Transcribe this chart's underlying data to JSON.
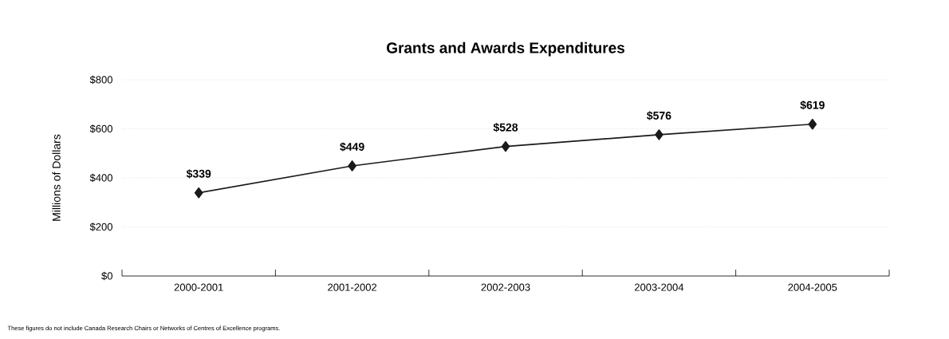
{
  "chart_data": {
    "type": "line",
    "title": "Grants and Awards Expenditures",
    "ylabel": "Millions of Dollars",
    "categories": [
      "2000-2001",
      "2001-2002",
      "2002-2003",
      "2003-2004",
      "2004-2005"
    ],
    "series": [
      {
        "color": "#1a1a1a",
        "values": [
          339,
          449,
          528,
          576,
          619
        ],
        "value_labels": [
          "$339",
          "$449",
          "$528",
          "$576",
          "$619"
        ]
      }
    ],
    "ylim": [
      0,
      800
    ],
    "yticks": [
      {
        "value": 0,
        "label": "$0"
      },
      {
        "value": 200,
        "label": "$200"
      },
      {
        "value": 400,
        "label": "$400"
      },
      {
        "value": 600,
        "label": "$600"
      },
      {
        "value": 800,
        "label": "$800"
      }
    ],
    "grid": "y",
    "marker": "diamond",
    "line_style": "solid",
    "annotations": [
      "These figures do not include Canada Research Chairs or Networks of Centres of Excellence programs."
    ]
  }
}
